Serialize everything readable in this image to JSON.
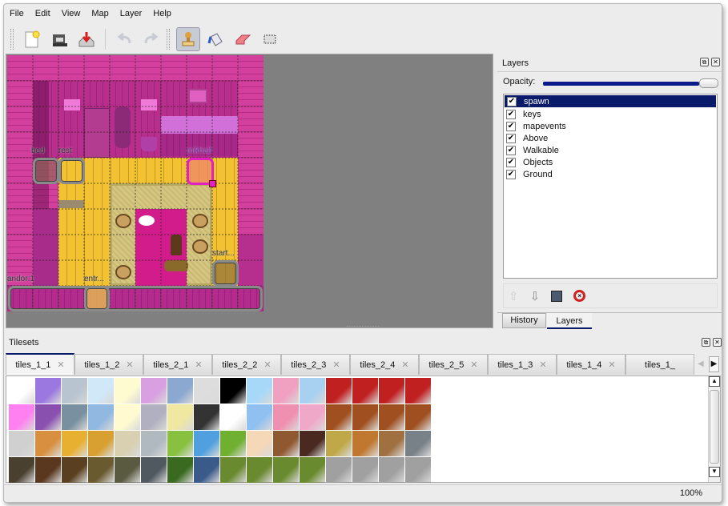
{
  "menu": [
    "File",
    "Edit",
    "View",
    "Map",
    "Layer",
    "Help"
  ],
  "toolbar": {
    "icons": [
      "new-file-icon",
      "open-folder-icon",
      "save-icon",
      "undo-icon",
      "redo-icon",
      "stamp-brush-icon",
      "bucket-fill-icon",
      "eraser-icon",
      "rectangle-select-icon"
    ],
    "active": "stamp-brush-icon"
  },
  "map": {
    "objects": [
      {
        "label": "bed"
      },
      {
        "label": "rest"
      },
      {
        "label": "mikhail"
      },
      {
        "label": "start..."
      },
      {
        "label": "entr..."
      },
      {
        "label": "andor:1"
      }
    ],
    "selected_object_color": "#e020c0"
  },
  "layers_dock": {
    "title": "Layers",
    "opacity_label": "Opacity:",
    "opacity": 1.0,
    "layers": [
      {
        "name": "spawn",
        "visible": true,
        "selected": true
      },
      {
        "name": "keys",
        "visible": true
      },
      {
        "name": "mapevents",
        "visible": true
      },
      {
        "name": "Above",
        "visible": true
      },
      {
        "name": "Walkable",
        "visible": true
      },
      {
        "name": "Objects",
        "visible": true
      },
      {
        "name": "Ground",
        "visible": true
      }
    ],
    "buttons": [
      "raise-layer-icon",
      "lower-layer-icon",
      "duplicate-layer-icon",
      "delete-layer-icon"
    ],
    "tabs": [
      "History",
      "Layers"
    ],
    "active_tab": "Layers"
  },
  "tilesets_dock": {
    "title": "Tilesets",
    "tabs": [
      "tiles_1_1",
      "tiles_1_2",
      "tiles_2_1",
      "tiles_2_2",
      "tiles_2_3",
      "tiles_2_4",
      "tiles_2_5",
      "tiles_1_3",
      "tiles_1_4",
      "tiles_1_"
    ],
    "active_tab": "tiles_1_1"
  },
  "status": {
    "zoom": "100%"
  },
  "colors": {
    "accent": "#0a1a6a",
    "map_bg": "#808080"
  }
}
